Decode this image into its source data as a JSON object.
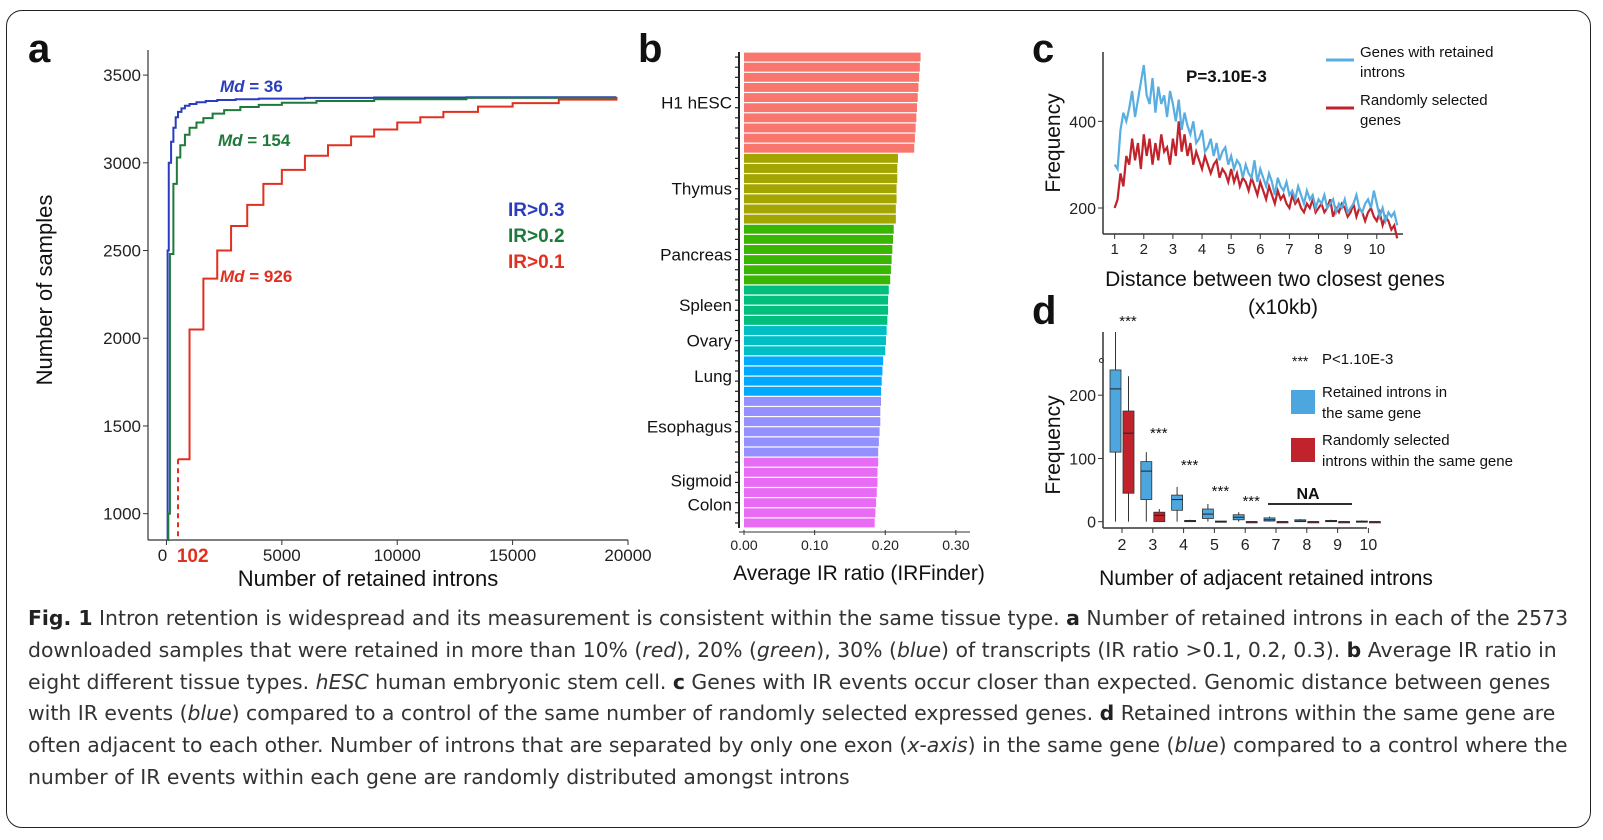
{
  "panels": {
    "a": "a",
    "b": "b",
    "c": "c",
    "d": "d"
  },
  "colors": {
    "blue": "#2a3dbf",
    "green": "#1e7a3a",
    "red": "#e03020",
    "c_blue": "#58aee0",
    "c_red": "#c0232b"
  },
  "caption": {
    "fig_label": "Fig. 1",
    "text": [
      {
        "t": " Intron retention is widespread and its measurement is consistent within the same tissue type. "
      },
      {
        "t": "a",
        "b": true
      },
      {
        "t": " Number of retained introns in each of the 2573 downloaded samples that were retained in more than 10% ("
      },
      {
        "t": "red",
        "i": true
      },
      {
        "t": "), 20% ("
      },
      {
        "t": "green",
        "i": true
      },
      {
        "t": "), 30% ("
      },
      {
        "t": "blue",
        "i": true
      },
      {
        "t": ") of transcripts (IR ratio >0.1, 0.2, 0.3). "
      },
      {
        "t": "b",
        "b": true
      },
      {
        "t": " Average IR ratio in eight different tissue types. "
      },
      {
        "t": "hESC",
        "i": true
      },
      {
        "t": " human embryonic stem cell. "
      },
      {
        "t": "c",
        "b": true
      },
      {
        "t": " Genes with IR events occur closer than expected. Genomic distance between genes with IR events ("
      },
      {
        "t": "blue",
        "i": true
      },
      {
        "t": ") compared to a control of the same number of randomly selected expressed genes. "
      },
      {
        "t": "d",
        "b": true
      },
      {
        "t": " Retained introns within the same gene are often adjacent to each other. Number of introns that are separated by only one exon ("
      },
      {
        "t": "x-axis",
        "i": true
      },
      {
        "t": ") in the same gene ("
      },
      {
        "t": "blue",
        "i": true
      },
      {
        "t": ") compared to a control where the number of IR events within each gene are randomly distributed amongst introns"
      }
    ]
  },
  "chart_data": [
    {
      "panel": "a",
      "type": "line",
      "xlabel": "Number of retained introns",
      "ylabel": "Number of samples",
      "xticks": [
        "0",
        "5000",
        "10000",
        "15000",
        "20000"
      ],
      "yticks": [
        "1000",
        "1500",
        "2000",
        "2500",
        "3000",
        "3500"
      ],
      "xlim": [
        -800,
        20000
      ],
      "ylim": [
        850,
        3700
      ],
      "marker_label": "102",
      "series": [
        {
          "name": "IR>0.3",
          "md_prefix": "Md",
          "md_value": " = 36",
          "x": [
            0,
            50,
            100,
            200,
            300,
            400,
            500,
            650,
            800,
            1000,
            1300,
            1700,
            2200,
            3000,
            4000,
            6000,
            9000,
            13000,
            19500
          ],
          "y": [
            850,
            2500,
            3000,
            3120,
            3200,
            3260,
            3290,
            3310,
            3325,
            3335,
            3345,
            3352,
            3358,
            3362,
            3366,
            3370,
            3372,
            3374,
            3375
          ]
        },
        {
          "name": "IR>0.2",
          "md_prefix": "Md",
          "md_value": " = 154",
          "x": [
            0,
            80,
            150,
            300,
            450,
            600,
            800,
            1000,
            1300,
            1600,
            2000,
            2500,
            3200,
            4000,
            5000,
            6500,
            9000,
            13000,
            19500
          ],
          "y": [
            850,
            1000,
            2480,
            2880,
            3030,
            3100,
            3160,
            3200,
            3230,
            3255,
            3280,
            3300,
            3318,
            3330,
            3342,
            3352,
            3362,
            3370,
            3375
          ]
        },
        {
          "name": "IR>0.1",
          "md_prefix": "Md",
          "md_value": " = 926",
          "x": [
            500,
            1000,
            1600,
            2200,
            2800,
            3500,
            4200,
            5000,
            6000,
            7000,
            8000,
            9000,
            10000,
            11000,
            12000,
            13500,
            15000,
            17000,
            19500
          ],
          "y": [
            1310,
            2050,
            2340,
            2500,
            2640,
            2760,
            2880,
            2960,
            3040,
            3100,
            3150,
            3190,
            3230,
            3260,
            3290,
            3320,
            3340,
            3360,
            3370
          ]
        }
      ]
    },
    {
      "panel": "b",
      "type": "bar",
      "orientation": "horizontal",
      "xlabel": "Average IR ratio (IRFinder)",
      "xticks": [
        "0.00",
        "0.10",
        "0.20",
        "0.30"
      ],
      "xlim": [
        0,
        0.32
      ],
      "groups": [
        {
          "name": "H1 hESC",
          "color": "#f8766d",
          "values": [
            0.25,
            0.249,
            0.248,
            0.247,
            0.246,
            0.245,
            0.244,
            0.243,
            0.242,
            0.241
          ]
        },
        {
          "name": "Thymus",
          "color": "#a3a500",
          "values": [
            0.218,
            0.217,
            0.217,
            0.216,
            0.216,
            0.215,
            0.215
          ]
        },
        {
          "name": "Pancreas",
          "color": "#39b600",
          "values": [
            0.212,
            0.211,
            0.21,
            0.209,
            0.208,
            0.207
          ]
        },
        {
          "name": "Spleen",
          "color": "#00bf7d",
          "values": [
            0.205,
            0.204,
            0.204,
            0.203
          ]
        },
        {
          "name": "Ovary",
          "color": "#00bfc4",
          "values": [
            0.202,
            0.201,
            0.2
          ]
        },
        {
          "name": "Lung",
          "color": "#00a9ff",
          "values": [
            0.197,
            0.196,
            0.195,
            0.194
          ]
        },
        {
          "name": "Esophagus",
          "color": "#9590ff",
          "values": [
            0.194,
            0.193,
            0.193,
            0.192,
            0.191,
            0.19
          ]
        },
        {
          "name": "Sigmoid\nColon",
          "color": "#e76bf3",
          "values": [
            0.19,
            0.189,
            0.189,
            0.188,
            0.187,
            0.186,
            0.185
          ]
        }
      ]
    },
    {
      "panel": "c",
      "type": "line",
      "xlabel": "Distance between two closest genes",
      "xlabel2": "(x10kb)",
      "ylabel": "Frequency",
      "xticks": [
        "1",
        "2",
        "3",
        "4",
        "5",
        "6",
        "7",
        "8",
        "9",
        "10"
      ],
      "yticks": [
        "200",
        "400"
      ],
      "xlim": [
        0.6,
        10.9
      ],
      "ylim": [
        140,
        560
      ],
      "annotation": "P=3.10E-3",
      "series": [
        {
          "name": "Genes with retained introns",
          "x": [
            1.0,
            1.1,
            1.2,
            1.3,
            1.4,
            1.5,
            1.6,
            1.7,
            1.8,
            1.9,
            2.0,
            2.1,
            2.2,
            2.3,
            2.4,
            2.5,
            2.6,
            2.7,
            2.8,
            2.9,
            3.0,
            3.1,
            3.2,
            3.3,
            3.4,
            3.5,
            3.6,
            3.7,
            3.8,
            3.9,
            4.0,
            4.1,
            4.2,
            4.3,
            4.4,
            4.5,
            4.6,
            4.7,
            4.8,
            4.9,
            5.0,
            5.1,
            5.2,
            5.3,
            5.4,
            5.5,
            5.6,
            5.7,
            5.8,
            5.9,
            6.0,
            6.1,
            6.2,
            6.3,
            6.4,
            6.5,
            6.6,
            6.7,
            6.8,
            6.9,
            7.0,
            7.1,
            7.2,
            7.3,
            7.4,
            7.5,
            7.6,
            7.7,
            7.8,
            7.9,
            8.0,
            8.1,
            8.2,
            8.3,
            8.4,
            8.5,
            8.6,
            8.7,
            8.8,
            8.9,
            9.0,
            9.1,
            9.2,
            9.3,
            9.4,
            9.5,
            9.6,
            9.7,
            9.8,
            9.9,
            10.0,
            10.1,
            10.2,
            10.3,
            10.4,
            10.5,
            10.6,
            10.7
          ],
          "y": [
            300,
            290,
            380,
            420,
            400,
            430,
            470,
            410,
            450,
            490,
            530,
            460,
            440,
            500,
            420,
            480,
            440,
            460,
            410,
            470,
            440,
            400,
            450,
            380,
            420,
            390,
            370,
            400,
            350,
            360,
            380,
            330,
            340,
            360,
            320,
            350,
            310,
            330,
            340,
            300,
            320,
            290,
            310,
            300,
            270,
            300,
            280,
            270,
            310,
            260,
            290,
            270,
            250,
            280,
            260,
            230,
            270,
            250,
            240,
            260,
            230,
            240,
            220,
            250,
            230,
            210,
            240,
            220,
            230,
            200,
            220,
            210,
            230,
            200,
            210,
            220,
            190,
            210,
            200,
            220,
            190,
            200,
            210,
            230,
            200,
            190,
            210,
            220,
            200,
            240,
            210,
            180,
            200,
            170,
            190,
            180,
            190,
            160
          ]
        },
        {
          "name": "Randomly selected genes",
          "x": [
            1.0,
            1.1,
            1.2,
            1.3,
            1.4,
            1.5,
            1.6,
            1.7,
            1.8,
            1.9,
            2.0,
            2.1,
            2.2,
            2.3,
            2.4,
            2.5,
            2.6,
            2.7,
            2.8,
            2.9,
            3.0,
            3.1,
            3.2,
            3.3,
            3.4,
            3.5,
            3.6,
            3.7,
            3.8,
            3.9,
            4.0,
            4.1,
            4.2,
            4.3,
            4.4,
            4.5,
            4.6,
            4.7,
            4.8,
            4.9,
            5.0,
            5.1,
            5.2,
            5.3,
            5.4,
            5.5,
            5.6,
            5.7,
            5.8,
            5.9,
            6.0,
            6.1,
            6.2,
            6.3,
            6.4,
            6.5,
            6.6,
            6.7,
            6.8,
            6.9,
            7.0,
            7.1,
            7.2,
            7.3,
            7.4,
            7.5,
            7.6,
            7.7,
            7.8,
            7.9,
            8.0,
            8.1,
            8.2,
            8.3,
            8.4,
            8.5,
            8.6,
            8.7,
            8.8,
            8.9,
            9.0,
            9.1,
            9.2,
            9.3,
            9.4,
            9.5,
            9.6,
            9.7,
            9.8,
            9.9,
            10.0,
            10.1,
            10.2,
            10.3,
            10.4,
            10.5,
            10.6,
            10.7
          ],
          "y": [
            200,
            220,
            280,
            250,
            320,
            300,
            360,
            310,
            350,
            290,
            370,
            320,
            360,
            300,
            350,
            310,
            370,
            330,
            340,
            300,
            360,
            320,
            400,
            330,
            370,
            320,
            350,
            300,
            330,
            310,
            290,
            320,
            300,
            280,
            300,
            310,
            270,
            290,
            280,
            260,
            290,
            260,
            280,
            250,
            270,
            260,
            240,
            270,
            250,
            230,
            260,
            240,
            220,
            250,
            230,
            210,
            240,
            220,
            230,
            210,
            200,
            230,
            210,
            220,
            200,
            190,
            210,
            200,
            220,
            190,
            200,
            210,
            190,
            200,
            220,
            180,
            200,
            190,
            210,
            200,
            180,
            190,
            210,
            180,
            200,
            190,
            170,
            190,
            200,
            180,
            170,
            190,
            160,
            180,
            170,
            150,
            160,
            130
          ]
        }
      ]
    },
    {
      "panel": "d",
      "type": "box",
      "xlabel": "Number of adjacent retained introns",
      "ylabel": "Frequency",
      "xticks": [
        "2",
        "3",
        "4",
        "5",
        "6",
        "7",
        "8",
        "9",
        "10"
      ],
      "yticks": [
        "0",
        "100",
        "200"
      ],
      "ylim": [
        -10,
        300
      ],
      "legend_stars": "***",
      "legend_p": "P<1.10E-3",
      "series": [
        {
          "name": "Retained introns in the same gene",
          "color": "#4da6dd"
        },
        {
          "name": "Randomly selected introns within the same gene",
          "color": "#c0232b"
        }
      ],
      "sig_label": "***",
      "na_label": "NA",
      "boxes": [
        {
          "x": "2",
          "s": 0,
          "min": 0,
          "q1": 110,
          "med": 210,
          "q3": 240,
          "max": 300,
          "out": 255
        },
        {
          "x": "2",
          "s": 1,
          "min": 0,
          "q1": 45,
          "med": 140,
          "q3": 175,
          "max": 230
        },
        {
          "x": "3",
          "s": 0,
          "min": 0,
          "q1": 35,
          "med": 80,
          "q3": 95,
          "max": 110
        },
        {
          "x": "3",
          "s": 1,
          "min": 0,
          "q1": 0,
          "med": 10,
          "q3": 15,
          "max": 20
        },
        {
          "x": "4",
          "s": 0,
          "min": 0,
          "q1": 18,
          "med": 35,
          "q3": 42,
          "max": 55
        },
        {
          "x": "4",
          "s": 1,
          "min": 0,
          "q1": 0,
          "med": 1,
          "q3": 2,
          "max": 3
        },
        {
          "x": "5",
          "s": 0,
          "min": 0,
          "q1": 5,
          "med": 12,
          "q3": 20,
          "max": 28
        },
        {
          "x": "5",
          "s": 1,
          "min": 0,
          "q1": 0,
          "med": 0,
          "q3": 1,
          "max": 1
        },
        {
          "x": "6",
          "s": 0,
          "min": 0,
          "q1": 3,
          "med": 7,
          "q3": 11,
          "max": 15
        },
        {
          "x": "6",
          "s": 1,
          "min": 0,
          "q1": 0,
          "med": 0,
          "q3": 0,
          "max": 0
        },
        {
          "x": "7",
          "s": 0,
          "min": 0,
          "q1": 1,
          "med": 3,
          "q3": 6,
          "max": 8
        },
        {
          "x": "7",
          "s": 1,
          "min": 0,
          "q1": 0,
          "med": 0,
          "q3": 0,
          "max": 0
        },
        {
          "x": "8",
          "s": 0,
          "min": 0,
          "q1": 0,
          "med": 1,
          "q3": 3,
          "max": 4
        },
        {
          "x": "8",
          "s": 1,
          "min": 0,
          "q1": 0,
          "med": 0,
          "q3": 0,
          "max": 0
        },
        {
          "x": "9",
          "s": 0,
          "min": 0,
          "q1": 0,
          "med": 1,
          "q3": 2,
          "max": 3
        },
        {
          "x": "9",
          "s": 1,
          "min": 0,
          "q1": 0,
          "med": 0,
          "q3": 0,
          "max": 0
        },
        {
          "x": "10",
          "s": 0,
          "min": 0,
          "q1": 0,
          "med": 0,
          "q3": 1,
          "max": 2
        },
        {
          "x": "10",
          "s": 1,
          "min": 0,
          "q1": 0,
          "med": 0,
          "q3": 0,
          "max": 0
        }
      ]
    }
  ]
}
